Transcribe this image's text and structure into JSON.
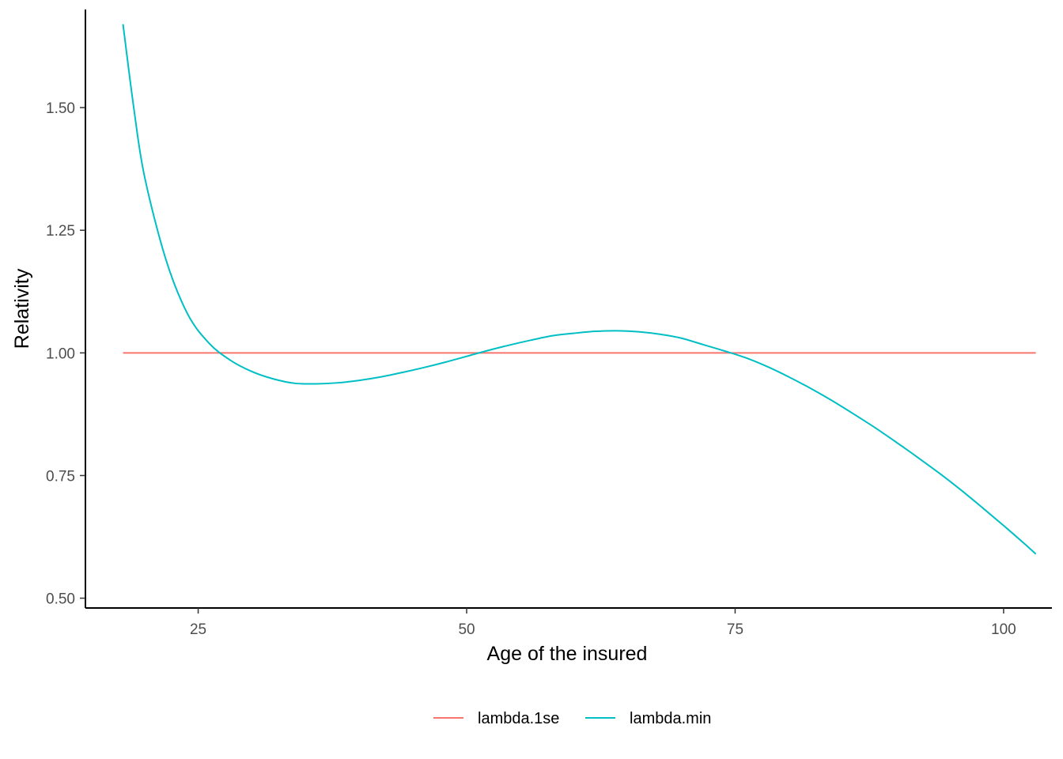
{
  "chart_data": {
    "type": "line",
    "xlabel": "Age of the insured",
    "ylabel": "Relativity",
    "xlim": [
      14.5,
      104.5
    ],
    "ylim": [
      0.48,
      1.7
    ],
    "x_ticks": [
      25,
      50,
      75,
      100
    ],
    "x_tick_labels": [
      "25",
      "50",
      "75",
      "100"
    ],
    "y_ticks": [
      0.5,
      0.75,
      1.0,
      1.25,
      1.5
    ],
    "y_tick_labels": [
      "0.50",
      "0.75",
      "1.00",
      "1.25",
      "1.50"
    ],
    "grid": false,
    "legend_position": "bottom",
    "series": [
      {
        "name": "lambda.1se",
        "color": "#F8766D",
        "x": [
          18,
          103
        ],
        "y": [
          1.0,
          1.0
        ]
      },
      {
        "name": "lambda.min",
        "color": "#00BFC4",
        "x": [
          18,
          19,
          20,
          22,
          24,
          26,
          28,
          30,
          32,
          34,
          36,
          38,
          40,
          42,
          44,
          46,
          48,
          50,
          52,
          54,
          56,
          58,
          60,
          62,
          64,
          66,
          68,
          70,
          72,
          74,
          76,
          78,
          80,
          82,
          84,
          86,
          88,
          90,
          92,
          94,
          96,
          98,
          100,
          102,
          103
        ],
        "y": [
          1.67,
          1.5,
          1.36,
          1.19,
          1.08,
          1.02,
          0.985,
          0.962,
          0.947,
          0.938,
          0.937,
          0.939,
          0.944,
          0.951,
          0.96,
          0.97,
          0.981,
          0.993,
          1.005,
          1.016,
          1.026,
          1.035,
          1.04,
          1.044,
          1.045,
          1.043,
          1.038,
          1.03,
          1.017,
          1.004,
          0.99,
          0.972,
          0.951,
          0.928,
          0.903,
          0.876,
          0.848,
          0.818,
          0.787,
          0.755,
          0.721,
          0.685,
          0.648,
          0.61,
          0.59
        ]
      }
    ]
  }
}
